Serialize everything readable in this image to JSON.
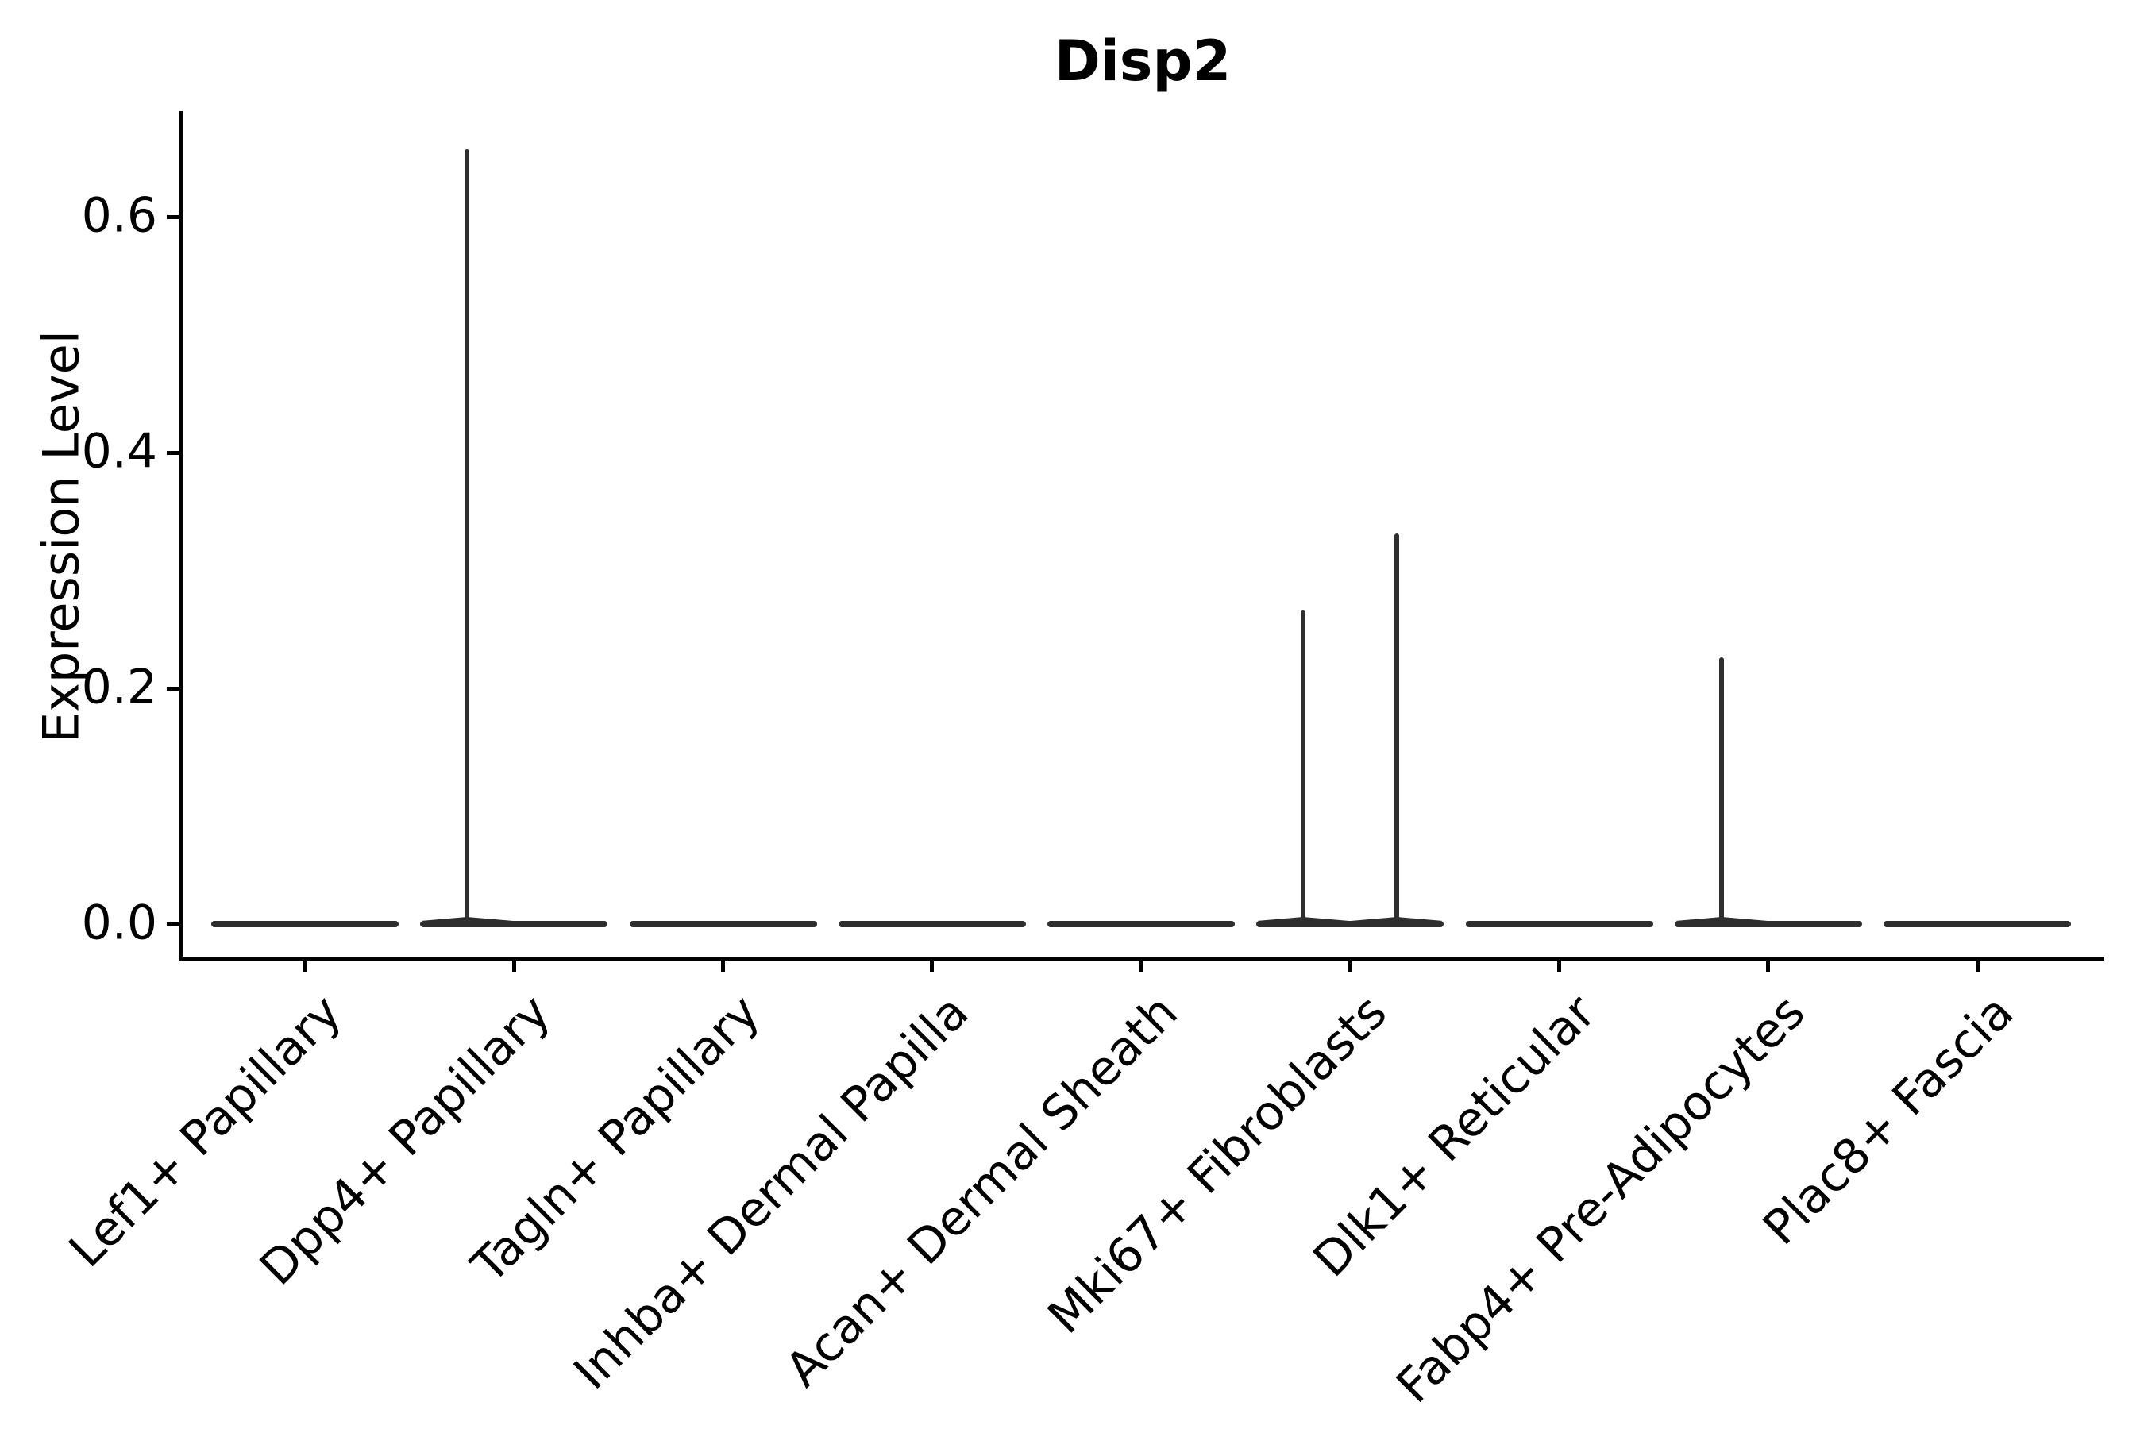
{
  "chart_data": {
    "type": "violin",
    "title": "Disp2",
    "ylabel": "Expression Level",
    "xlabel": "",
    "yticks": [
      0.0,
      0.2,
      0.4,
      0.6
    ],
    "ytick_labels": [
      "0.0",
      "0.2",
      "0.4",
      "0.6"
    ],
    "ylim": [
      -0.033,
      0.69
    ],
    "grid": false,
    "legend": "none",
    "categories": [
      "Lef1+ Papillary",
      "Dpp4+ Papillary",
      "Tagln+ Papillary",
      "Inhba+ Dermal Papilla",
      "Acan+ Dermal Sheath",
      "Mki67+ Fibroblasts",
      "Dlk1+ Reticular",
      "Fabp4+ Pre-Adipocytes",
      "Plac8+ Fascia"
    ],
    "violins": [
      {
        "category": "Lef1+ Papillary",
        "baseline": 0.0,
        "spikes": []
      },
      {
        "category": "Dpp4+ Papillary",
        "baseline": 0.0,
        "spikes": [
          {
            "side": "left",
            "max": 0.657
          }
        ]
      },
      {
        "category": "Tagln+ Papillary",
        "baseline": 0.0,
        "spikes": []
      },
      {
        "category": "Inhba+ Dermal Papilla",
        "baseline": 0.0,
        "spikes": []
      },
      {
        "category": "Acan+ Dermal Sheath",
        "baseline": 0.0,
        "spikes": []
      },
      {
        "category": "Mki67+ Fibroblasts",
        "baseline": 0.0,
        "spikes": [
          {
            "side": "left",
            "max": 0.267
          },
          {
            "side": "right",
            "max": 0.331
          }
        ]
      },
      {
        "category": "Dlk1+ Reticular",
        "baseline": 0.0,
        "spikes": []
      },
      {
        "category": "Fabp4+ Pre-Adipocytes",
        "baseline": 0.0,
        "spikes": [
          {
            "side": "left",
            "max": 0.226
          }
        ]
      },
      {
        "category": "Plac8+ Fascia",
        "baseline": 0.0,
        "spikes": []
      }
    ],
    "colors": {
      "violin": "#2e2e2e",
      "axis": "#000000",
      "text": "#000000",
      "background": "#ffffff"
    }
  }
}
